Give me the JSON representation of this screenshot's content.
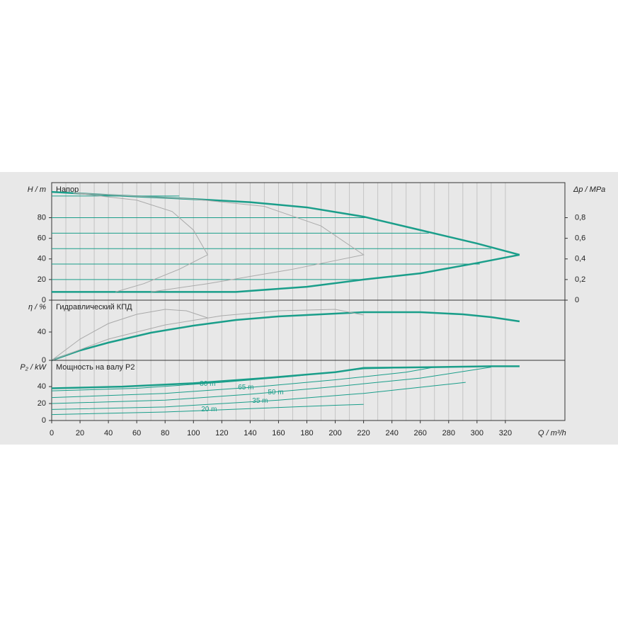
{
  "chart_data": [
    {
      "type": "line",
      "title": "Напор",
      "ylabel": "H / m",
      "y2label": "Δp / MPa",
      "xlim": [
        0,
        362
      ],
      "ylim": [
        0,
        114
      ],
      "yticks": [
        0,
        20,
        40,
        60,
        80
      ],
      "y2lim": [
        0,
        1.14
      ],
      "y2ticks": [
        0,
        {
          "value": 0.2,
          "label": "0,2"
        },
        {
          "value": 0.4,
          "label": "0,4"
        },
        {
          "value": 0.6,
          "label": "0,6"
        },
        {
          "value": 0.8,
          "label": "0,8"
        }
      ],
      "series": [
        {
          "color": "#1a9e8a",
          "line_width": 2.5,
          "x": [
            0,
            40,
            100,
            140,
            180,
            220,
            260,
            300,
            330
          ],
          "values": [
            105,
            102,
            98,
            95,
            90,
            81,
            68,
            55,
            44
          ]
        },
        {
          "color": "#1a9e8a",
          "line_width": 2.5,
          "x": [
            0,
            130,
            180,
            220,
            260,
            300,
            330
          ],
          "values": [
            8,
            8,
            13,
            20,
            26,
            36,
            44
          ]
        },
        {
          "color": "#1a9e8a",
          "line_width": 1,
          "x": [
            0,
            90
          ],
          "values": [
            101,
            101
          ]
        },
        {
          "color": "#1a9e8a",
          "line_width": 1,
          "x": [
            0,
            222
          ],
          "values": [
            80,
            80
          ]
        },
        {
          "color": "#1a9e8a",
          "line_width": 1,
          "x": [
            0,
            266
          ],
          "values": [
            65,
            65
          ]
        },
        {
          "color": "#1a9e8a",
          "line_width": 1,
          "x": [
            0,
            310
          ],
          "values": [
            50,
            50
          ]
        },
        {
          "color": "#1a9e8a",
          "line_width": 1,
          "x": [
            0,
            302
          ],
          "values": [
            35,
            35
          ]
        },
        {
          "color": "#1a9e8a",
          "line_width": 1,
          "x": [
            0,
            220
          ],
          "values": [
            20,
            20
          ]
        },
        {
          "color": "#aaaaaa",
          "line_width": 1,
          "x": [
            15,
            60,
            85,
            100,
            110,
            90,
            65,
            45
          ],
          "values": [
            104,
            97,
            86,
            68,
            44,
            30,
            16,
            8
          ]
        },
        {
          "color": "#aaaaaa",
          "line_width": 1,
          "x": [
            15,
            100,
            150,
            190,
            220,
            170,
            110,
            70
          ],
          "values": [
            104,
            98,
            91,
            72,
            44,
            30,
            16,
            8
          ]
        }
      ]
    },
    {
      "type": "line",
      "title": "Гидравлический КПД",
      "ylabel": "η / %",
      "xlim": [
        0,
        362
      ],
      "ylim": [
        0,
        85
      ],
      "yticks": [
        0,
        40
      ],
      "series": [
        {
          "color": "#1a9e8a",
          "line_width": 2.5,
          "x": [
            0,
            20,
            40,
            70,
            100,
            130,
            160,
            200,
            220,
            260,
            290,
            310,
            330
          ],
          "values": [
            0,
            14,
            25,
            39,
            49,
            57,
            62,
            66,
            68,
            68,
            65,
            61,
            55
          ]
        },
        {
          "color": "#aaaaaa",
          "line_width": 1,
          "x": [
            0,
            20,
            40,
            60,
            80,
            95,
            110
          ],
          "values": [
            0,
            30,
            52,
            65,
            72,
            70,
            60
          ]
        },
        {
          "color": "#aaaaaa",
          "line_width": 1,
          "x": [
            0,
            40,
            80,
            120,
            160,
            200,
            220
          ],
          "values": [
            0,
            30,
            50,
            63,
            70,
            72,
            64
          ]
        }
      ]
    },
    {
      "type": "line",
      "title": "Мощность на валу P2",
      "ylabel": "P₂ / kW",
      "xlabel": "Q / m³/h",
      "xlim": [
        0,
        362
      ],
      "ylim": [
        0,
        71
      ],
      "yticks": [
        0,
        20,
        40
      ],
      "xticks": [
        0,
        20,
        40,
        60,
        80,
        100,
        120,
        140,
        160,
        180,
        200,
        220,
        240,
        260,
        280,
        300,
        320
      ],
      "series": [
        {
          "color": "#1a9e8a",
          "line_width": 2.5,
          "x": [
            0,
            50,
            100,
            150,
            200,
            220,
            270,
            310,
            330
          ],
          "values": [
            38,
            40,
            44,
            50,
            57,
            62,
            63,
            64,
            64
          ]
        },
        {
          "color": "#1a9e8a",
          "line_width": 1,
          "x": [
            0,
            60,
            120,
            170,
            220,
            270
          ],
          "values": [
            35,
            38,
            45,
            52,
            61,
            63
          ]
        },
        {
          "color": "#1a9e8a",
          "line_width": 1,
          "x": [
            0,
            80,
            140,
            200,
            250,
            270
          ],
          "values": [
            27,
            32,
            39,
            48,
            57,
            63
          ]
        },
        {
          "color": "#1a9e8a",
          "line_width": 1,
          "x": [
            0,
            80,
            140,
            200,
            260,
            310
          ],
          "values": [
            20,
            24,
            31,
            40,
            50,
            63
          ]
        },
        {
          "color": "#1a9e8a",
          "line_width": 1,
          "x": [
            0,
            80,
            160,
            220,
            270,
            292
          ],
          "values": [
            13,
            16,
            24,
            32,
            41,
            45
          ]
        },
        {
          "color": "#1a9e8a",
          "line_width": 1,
          "x": [
            0,
            80,
            140,
            200,
            220
          ],
          "values": [
            7,
            10,
            14,
            18,
            19
          ]
        }
      ],
      "annotations": [
        {
          "text": "80 m",
          "x": 110,
          "y": 43
        },
        {
          "text": "65 m",
          "x": 137,
          "y": 39
        },
        {
          "text": "50 m",
          "x": 158,
          "y": 33
        },
        {
          "text": "35 m",
          "x": 147,
          "y": 23
        },
        {
          "text": "20 m",
          "x": 111,
          "y": 13
        }
      ]
    }
  ]
}
